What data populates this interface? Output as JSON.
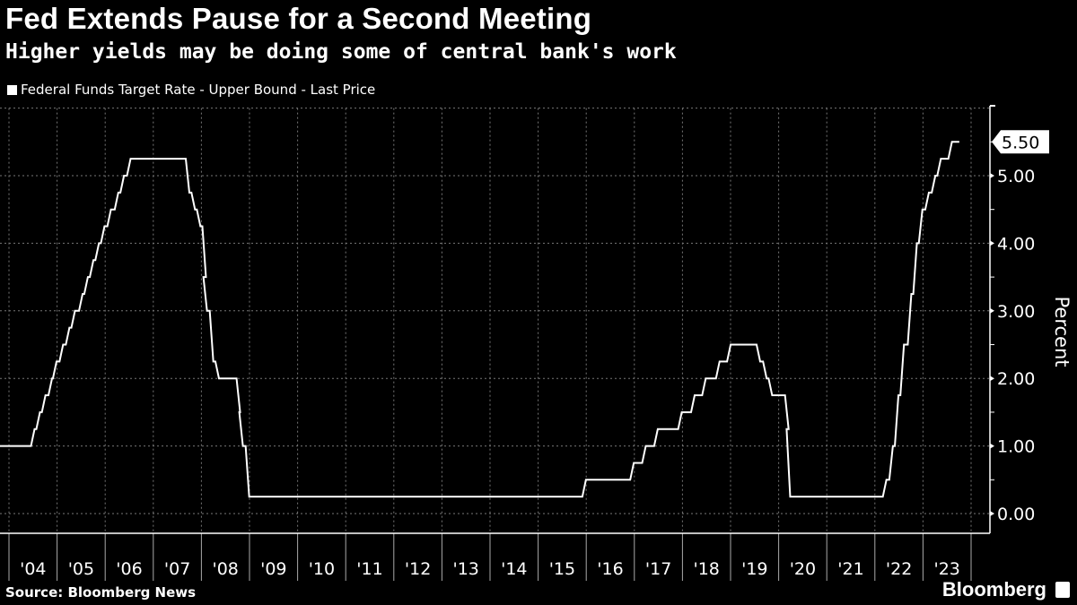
{
  "header": {
    "title": "Fed Extends Pause for a Second Meeting",
    "subtitle": "Higher yields may be doing some of central bank's work"
  },
  "footer": {
    "source": "Source: Bloomberg News",
    "logo": "Bloomberg"
  },
  "chart_data": {
    "type": "line",
    "title": "Fed Extends Pause for a Second Meeting",
    "subtitle": "Higher yields may be doing some of central bank's work",
    "ylabel": "Percent",
    "xlabel": "",
    "legend_position": "top-left",
    "grid": true,
    "line_color": "#ffffff",
    "background": "#000000",
    "ylim": [
      0,
      6
    ],
    "xlim": [
      "2003-10-20",
      "2024-01-01"
    ],
    "y_ticks": [
      "0.00",
      "1.00",
      "2.00",
      "3.00",
      "4.00",
      "5.00"
    ],
    "x_ticks": [
      "'04",
      "'05",
      "'06",
      "'07",
      "'08",
      "'09",
      "'10",
      "'11",
      "'12",
      "'13",
      "'14",
      "'15",
      "'16",
      "'17",
      "'18",
      "'19",
      "'20",
      "'21",
      "'22",
      "'23"
    ],
    "last_value_label": "5.50",
    "series": [
      {
        "name": "Federal Funds Target Rate - Upper Bound - Last Price",
        "points": [
          [
            "2003-10-20",
            1.0
          ],
          [
            "2004-06-30",
            1.25
          ],
          [
            "2004-08-10",
            1.5
          ],
          [
            "2004-09-21",
            1.75
          ],
          [
            "2004-11-10",
            2.0
          ],
          [
            "2004-12-14",
            2.25
          ],
          [
            "2005-02-02",
            2.5
          ],
          [
            "2005-03-22",
            2.75
          ],
          [
            "2005-05-03",
            3.0
          ],
          [
            "2005-06-30",
            3.25
          ],
          [
            "2005-08-09",
            3.5
          ],
          [
            "2005-09-20",
            3.75
          ],
          [
            "2005-11-01",
            4.0
          ],
          [
            "2005-12-13",
            4.25
          ],
          [
            "2006-01-31",
            4.5
          ],
          [
            "2006-03-28",
            4.75
          ],
          [
            "2006-05-10",
            5.0
          ],
          [
            "2006-06-29",
            5.25
          ],
          [
            "2007-09-18",
            4.75
          ],
          [
            "2007-10-31",
            4.5
          ],
          [
            "2007-12-11",
            4.25
          ],
          [
            "2008-01-22",
            3.5
          ],
          [
            "2008-01-30",
            3.0
          ],
          [
            "2008-03-18",
            2.25
          ],
          [
            "2008-04-30",
            2.0
          ],
          [
            "2008-10-08",
            1.5
          ],
          [
            "2008-10-29",
            1.0
          ],
          [
            "2008-12-16",
            0.25
          ],
          [
            "2015-12-16",
            0.5
          ],
          [
            "2016-12-14",
            0.75
          ],
          [
            "2017-03-15",
            1.0
          ],
          [
            "2017-06-14",
            1.25
          ],
          [
            "2017-12-13",
            1.5
          ],
          [
            "2018-03-21",
            1.75
          ],
          [
            "2018-06-13",
            2.0
          ],
          [
            "2018-09-26",
            2.25
          ],
          [
            "2018-12-19",
            2.5
          ],
          [
            "2019-07-31",
            2.25
          ],
          [
            "2019-09-18",
            2.0
          ],
          [
            "2019-10-30",
            1.75
          ],
          [
            "2020-03-03",
            1.25
          ],
          [
            "2020-03-15",
            0.25
          ],
          [
            "2022-03-16",
            0.5
          ],
          [
            "2022-05-04",
            1.0
          ],
          [
            "2022-06-15",
            1.75
          ],
          [
            "2022-07-27",
            2.5
          ],
          [
            "2022-09-21",
            3.25
          ],
          [
            "2022-11-02",
            4.0
          ],
          [
            "2022-12-14",
            4.5
          ],
          [
            "2023-02-01",
            4.75
          ],
          [
            "2023-03-22",
            5.0
          ],
          [
            "2023-05-03",
            5.25
          ],
          [
            "2023-07-26",
            5.5
          ],
          [
            "2023-09-20",
            5.5
          ]
        ]
      }
    ]
  }
}
